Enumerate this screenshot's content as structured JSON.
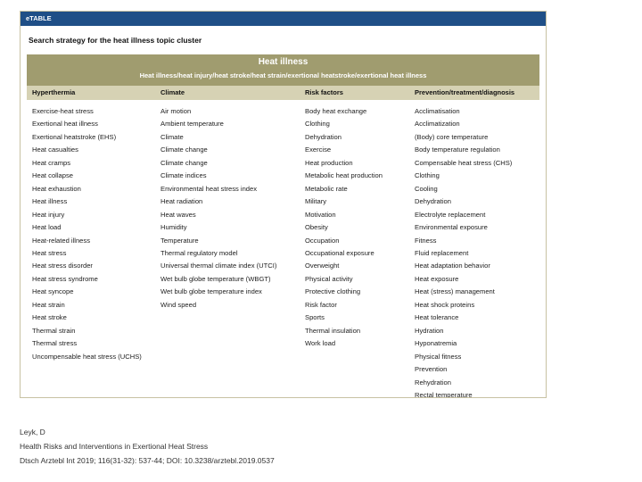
{
  "table": {
    "tag": "eTABLE",
    "caption": "Search strategy for the heat illness topic cluster",
    "title": "Heat illness",
    "subtitle": "Heat illness/heat injury/heat stroke/heat strain/exertional heatstroke/exertional heat illness",
    "columns": [
      "Hyperthermia",
      "Climate",
      "Risk factors",
      "Prevention/treatment/diagnosis"
    ],
    "col_hyperthermia": [
      "Exercise-heat stress",
      "Exertional heat illness",
      "Exertional heatstroke (EHS)",
      "Heat casualties",
      "Heat cramps",
      "Heat collapse",
      "Heat exhaustion",
      "Heat illness",
      "Heat injury",
      "Heat load",
      "Heat-related illness",
      "Heat stress",
      "Heat stress disorder",
      "Heat stress syndrome",
      "Heat syncope",
      "Heat strain",
      "Heat stroke",
      "Thermal strain",
      "Thermal stress",
      "Uncompensable heat stress (UCHS)"
    ],
    "col_climate": [
      "Air motion",
      "Ambient temperature",
      "Climate",
      "Climate change",
      "Climate change",
      "Climate indices",
      "Environmental heat stress index",
      "Heat radiation",
      "Heat waves",
      "Humidity",
      "Temperature",
      "Thermal regulatory model",
      "Universal thermal climate index (UTCI)",
      "Wet bulb globe temperature (WBGT)",
      "Wet bulb globe temperature index",
      "Wind speed"
    ],
    "col_risk": [
      "Body heat exchange",
      "Clothing",
      "Dehydration",
      "Exercise",
      "Heat production",
      "Metabolic heat production",
      "Metabolic rate",
      "Military",
      "Motivation",
      "Obesity",
      "Occupation",
      "Occupational exposure",
      "Overweight",
      "Physical activity",
      "Protective clothing",
      "Risk factor",
      "Sports",
      "Thermal insulation",
      "Work load"
    ],
    "col_prevention": [
      "Acclimatisation",
      "Acclimatization",
      "(Body) core temperature",
      "Body temperature regulation",
      "Compensable heat stress (CHS)",
      "Clothing",
      "Cooling",
      "Dehydration",
      "Electrolyte replacement",
      "Environmental exposure",
      "Fitness",
      "Fluid replacement",
      "Heat adaptation behavior",
      "Heat exposure",
      "Heat (stress) management",
      "Heat shock proteins",
      "Heat tolerance",
      "Hydration",
      "Hyponatremia",
      "Physical fitness",
      "Prevention",
      "Rehydration",
      "Rectal temperature"
    ]
  },
  "credits": {
    "author": "Leyk, D",
    "title": "Health Risks and Interventions in Exertional Heat Stress",
    "citation": "Dtsch Arztebl Int 2019; 116(31-32): 537-44; DOI: 10.3238/arztebl.2019.0537"
  },
  "colors": {
    "etable_bar": "#1f4f87",
    "header_dark": "#a09c6f",
    "header_light": "#d6d2b4"
  }
}
